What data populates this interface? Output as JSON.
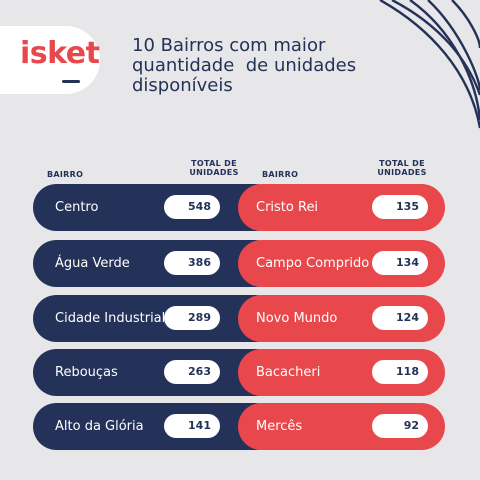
{
  "brand": {
    "logo_text": "isket"
  },
  "title": {
    "line1": "10 Bairros com maior",
    "line2": "quantidade  de unidades",
    "line3": "disponíveis"
  },
  "headers": {
    "left_bairro": "BAIRRO",
    "left_total_line1": "TOTAL DE",
    "left_total_line2": "UNIDADES",
    "right_bairro": "BAIRRO",
    "right_total_line1": "TOTAL DE",
    "right_total_line2": "UNIDADES"
  },
  "left_rows": [
    {
      "name": "Centro",
      "value": "548"
    },
    {
      "name": "Água Verde",
      "value": "386"
    },
    {
      "name": "Cidade Industrial",
      "value": "289"
    },
    {
      "name": "Rebouças",
      "value": "263"
    },
    {
      "name": "Alto da Glória",
      "value": "141"
    }
  ],
  "right_rows": [
    {
      "name": "Cristo Rei",
      "value": "135"
    },
    {
      "name": "Campo Comprido",
      "value": "134"
    },
    {
      "name": "Novo Mundo",
      "value": "124"
    },
    {
      "name": "Bacacheri",
      "value": "118"
    },
    {
      "name": "Mercês",
      "value": "92"
    }
  ],
  "colors": {
    "navy": "#243259",
    "red": "#e8474b",
    "background": "#e7e7e9",
    "white": "#ffffff"
  }
}
